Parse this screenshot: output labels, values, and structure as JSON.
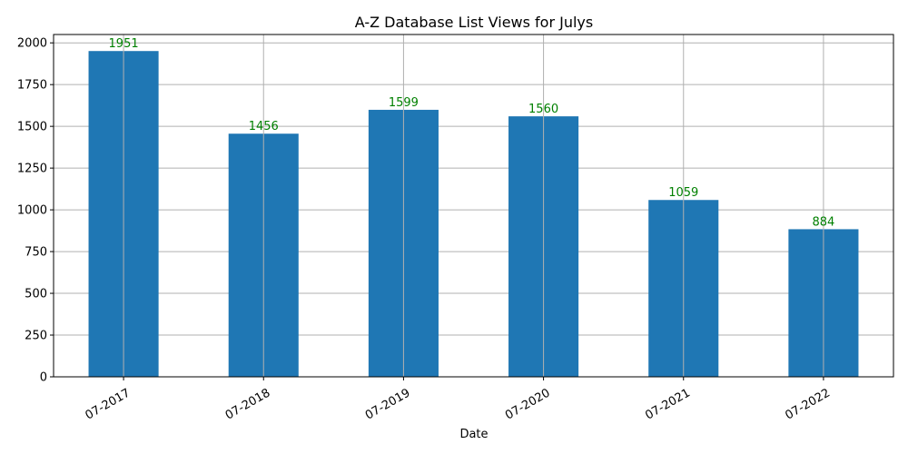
{
  "chart_data": {
    "type": "bar",
    "title": "A-Z Database List Views for Julys",
    "xlabel": "Date",
    "ylabel": "",
    "categories": [
      "07-2017",
      "07-2018",
      "07-2019",
      "07-2020",
      "07-2021",
      "07-2022"
    ],
    "values": [
      1951,
      1456,
      1599,
      1560,
      1059,
      884
    ],
    "data_labels": [
      "1951",
      "1456",
      "1599",
      "1560",
      "1059",
      "884"
    ],
    "ylim": [
      0,
      2050
    ],
    "yticks": [
      0,
      250,
      500,
      750,
      1000,
      1250,
      1500,
      1750,
      2000
    ],
    "ytick_labels": [
      "0",
      "250",
      "500",
      "750",
      "1000",
      "1250",
      "1500",
      "1750",
      "2000"
    ],
    "grid": true,
    "legend": "none",
    "colors": {
      "bar": "#1f77b4",
      "data_label": "#008000",
      "grid": "#b0b0b0",
      "axis": "#000000"
    }
  }
}
